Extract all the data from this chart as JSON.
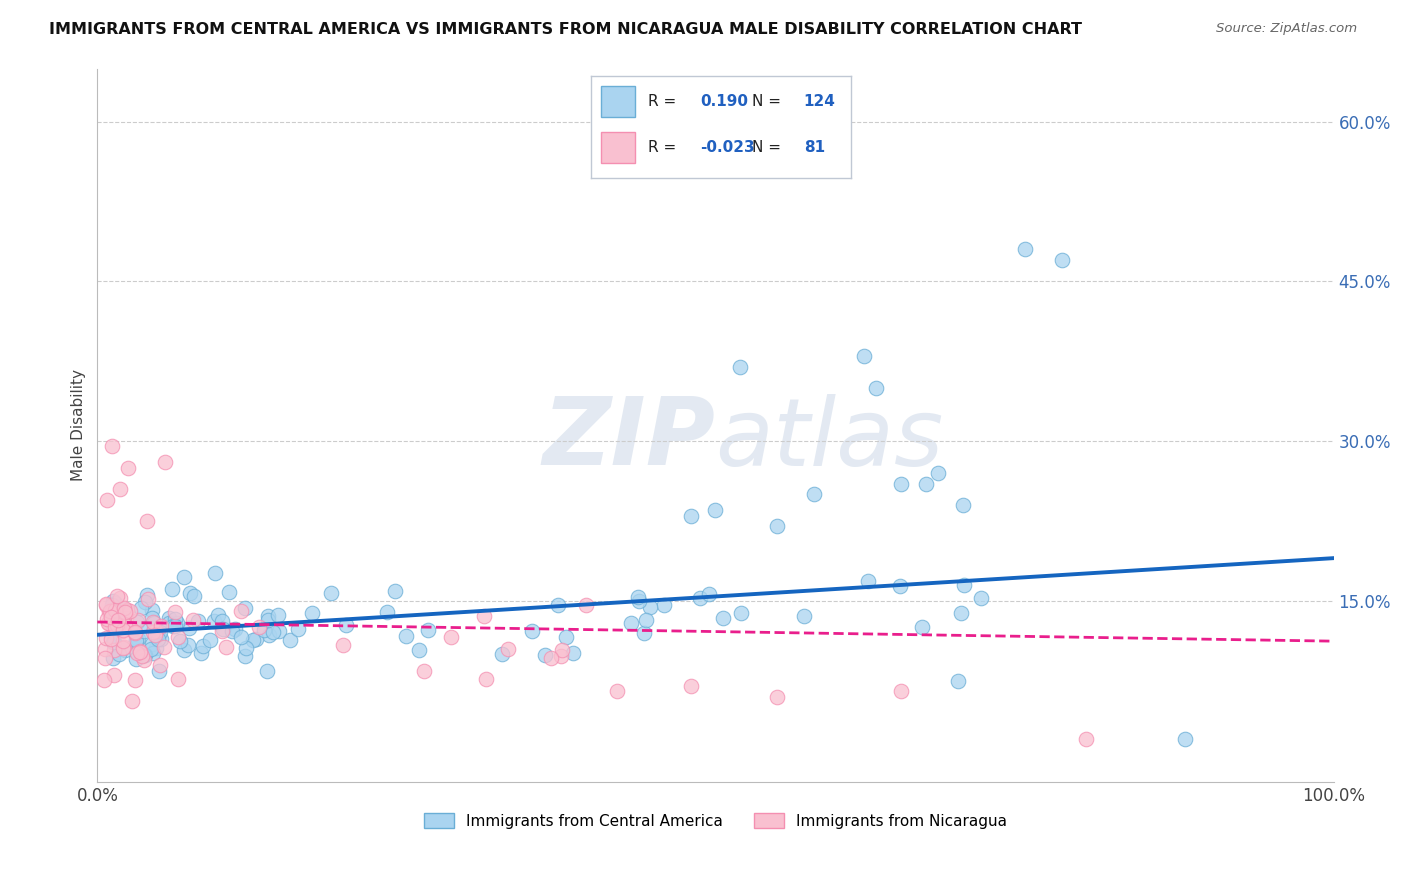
{
  "title": "IMMIGRANTS FROM CENTRAL AMERICA VS IMMIGRANTS FROM NICARAGUA MALE DISABILITY CORRELATION CHART",
  "source": "Source: ZipAtlas.com",
  "ylabel": "Male Disability",
  "xlim": [
    0.0,
    1.0
  ],
  "ylim": [
    -0.02,
    0.65
  ],
  "yticks": [
    0.0,
    0.15,
    0.3,
    0.45,
    0.6
  ],
  "ytick_labels": [
    "",
    "15.0%",
    "30.0%",
    "45.0%",
    "60.0%"
  ],
  "gridline_y": [
    0.15,
    0.3,
    0.45,
    0.6
  ],
  "legend_blue_r": "0.190",
  "legend_blue_n": "124",
  "legend_pink_r": "-0.023",
  "legend_pink_n": "81",
  "blue_color": "#6aaed6",
  "pink_color": "#f48fb1",
  "blue_line_color": "#1565c0",
  "pink_line_color": "#e91e8c",
  "blue_scatter_facecolor": "#aad4f0",
  "pink_scatter_facecolor": "#f9c0d0",
  "watermark_color": "#ccd8e8",
  "background_color": "#ffffff",
  "series1_label": "Immigrants from Central America",
  "series2_label": "Immigrants from Nicaragua",
  "blue_line_intercept": 0.118,
  "blue_line_slope": 0.072,
  "pink_line_intercept": 0.13,
  "pink_line_slope": -0.018
}
